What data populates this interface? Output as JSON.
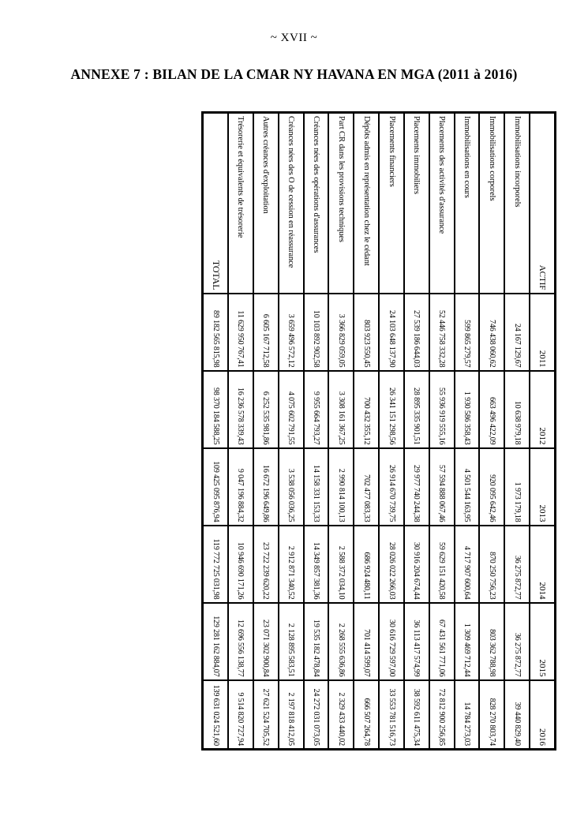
{
  "page": {
    "roman_numeral": "~ XVII ~",
    "title": "ANNEXE 7 : BILAN DE LA CMAR NY HAVANA EN MGA (2011 à 2016)"
  },
  "table": {
    "header": [
      "ACTIF",
      "2011",
      "2012",
      "2013",
      "2014",
      "2015",
      "2016"
    ],
    "rows": [
      {
        "label": "Immobilisations incorporels",
        "values": [
          "24 167 129,67",
          "10 638 979,18",
          "1 973 179,18",
          "36 275 872,77",
          "36 275 872,77",
          "39 440 829,40"
        ]
      },
      {
        "label": "Immobilisations corporels",
        "values": [
          "746 438 060,62",
          "663 496 422,09",
          "920 095 642,46",
          "870 250 756,23",
          "803 362 788,98",
          "828 270 803,74"
        ]
      },
      {
        "label": "Immobilisations en cours",
        "values": [
          "599 865 279,57",
          "1 930 586 358,43",
          "4 501 544 163,95",
          "4 717 907 600,64",
          "1 309 469 712,44",
          "14 784 273,03"
        ]
      },
      {
        "label": "Placements des activités d'assurance",
        "values": [
          "52 446 758 332,28",
          "55 936 919 555,16",
          "57 594 888 067,46",
          "59 629 151 420,58",
          "67 431 561 771,06",
          "72 812 900 256,85"
        ]
      },
      {
        "label": "Placements immobiliers",
        "values": [
          "27 539 186 644,03",
          "28 895 335 901,51",
          "29 977 740 244,38",
          "30 916 204 674,44",
          "36 113 417 574,99",
          "38 592 611 475,34"
        ]
      },
      {
        "label": "Placements financiers",
        "values": [
          "24 103 648 137,90",
          "26 341 151 298,56",
          "26 914 670 739,75",
          "28 026 022 266,03",
          "30 616 729 597,00",
          "33 553 781 516,73"
        ]
      },
      {
        "label": "Dépôts admis en représentation chez le cédant",
        "values": [
          "803 923 550,45",
          "700 432 355,12",
          "702 477 083,33",
          "686 924 480,11",
          "701 414 599,07",
          "666 507 264,78"
        ]
      },
      {
        "label": "Part CR dans les provisions techniques",
        "values": [
          "3 366 829 059,05",
          "3 308 161 367,25",
          "2 990 814 100,13",
          "2 588 372 034,10",
          "2 268 555 636,86",
          "2 329 433 440,02"
        ]
      },
      {
        "label": "Créances nées des opérations d'assurances",
        "values": [
          "10 103 892 902,58",
          "9 955 664 793,27",
          "14 158 331 153,33",
          "14 349 857 381,36",
          "19 535 182 478,84",
          "24 272 031 073,05"
        ]
      },
      {
        "label": "Créances nées des O de cession en réassurance",
        "values": [
          "3 659 496 572,12",
          "4 075 602 791,55",
          "3 538 056 036,25",
          "2 912 871 340,52",
          "2 128 895 583,51",
          "2 197 818 412,05"
        ]
      },
      {
        "label": "Autres créances d'exploitation",
        "values": [
          "6 605 167 712,58",
          "6 252 535 981,86",
          "16 672 196 649,86",
          "23 722 239 620,22",
          "23 071 302 900,84",
          "27 621 524 705,52"
        ]
      },
      {
        "label": "Trésorerie et équivalents de trésorerie",
        "values": [
          "11 629 950 767,41",
          "16 236 578 339,43",
          "9 047 196 884,32",
          "10 946 690 171,26",
          "12 696 556 138,77",
          "9 514 820 727,94"
        ]
      },
      {
        "label": "TOTAL",
        "is_total": true,
        "values": [
          "89 182 565 815,98",
          "98 370 184 588,25",
          "109 425 095 876,94",
          "119 772 725 031,98",
          "129 281 162 884,07",
          "139 631 024 521,60"
        ]
      }
    ]
  }
}
